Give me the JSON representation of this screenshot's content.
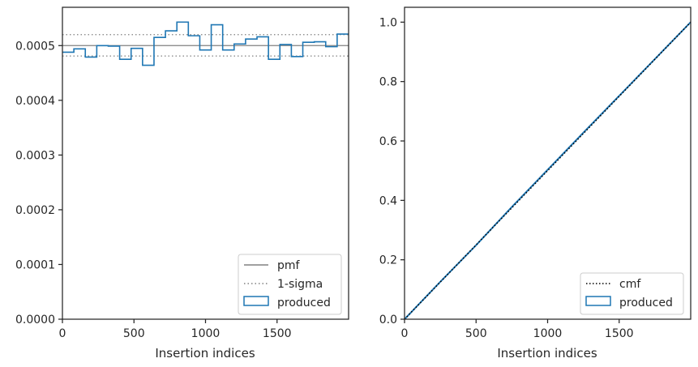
{
  "chart_data": [
    {
      "type": "step",
      "title": "",
      "xlabel": "Insertion indices",
      "ylabel": "",
      "xlim": [
        0,
        2000
      ],
      "ylim": [
        0,
        0.00057
      ],
      "xticks": [
        0,
        500,
        1000,
        1500
      ],
      "xtick_labels": [
        "0",
        "500",
        "1000",
        "1500"
      ],
      "yticks": [
        0,
        0.0001,
        0.0002,
        0.0003,
        0.0004,
        0.0005
      ],
      "ytick_labels": [
        "0.0000",
        "0.0001",
        "0.0002",
        "0.0003",
        "0.0004",
        "0.0005"
      ],
      "grid": false,
      "legend_position": "lower-right",
      "series": [
        {
          "name": "pmf",
          "kind": "hline",
          "value": 0.0005,
          "color": "#808080",
          "style": "solid"
        },
        {
          "name": "1-sigma",
          "kind": "hlines",
          "values": [
            0.000481,
            0.00052
          ],
          "color": "#808080",
          "style": "dotted"
        },
        {
          "name": "produced",
          "kind": "histogram-step",
          "color": "#1f77b4",
          "bin_width": 80,
          "bin_edges": [
            0,
            80,
            160,
            240,
            320,
            400,
            480,
            560,
            640,
            720,
            800,
            880,
            960,
            1040,
            1120,
            1200,
            1280,
            1360,
            1440,
            1520,
            1600,
            1680,
            1760,
            1840,
            1920,
            2000
          ],
          "values": [
            0.000488,
            0.000494,
            0.000479,
            0.0005,
            0.000499,
            0.000475,
            0.000495,
            0.000464,
            0.000515,
            0.000527,
            0.000543,
            0.000518,
            0.000492,
            0.000538,
            0.000492,
            0.000503,
            0.000512,
            0.000516,
            0.000475,
            0.000502,
            0.00048,
            0.000506,
            0.000507,
            0.000498,
            0.000521
          ]
        }
      ]
    },
    {
      "type": "line",
      "title": "",
      "xlabel": "Insertion indices",
      "ylabel": "",
      "xlim": [
        0,
        2000
      ],
      "ylim": [
        0,
        1.05
      ],
      "xticks": [
        0,
        500,
        1000,
        1500
      ],
      "xtick_labels": [
        "0",
        "500",
        "1000",
        "1500"
      ],
      "yticks": [
        0,
        0.2,
        0.4,
        0.6,
        0.8,
        1.0
      ],
      "ytick_labels": [
        "0.0",
        "0.2",
        "0.4",
        "0.6",
        "0.8",
        "1.0"
      ],
      "grid": false,
      "legend_position": "lower-right",
      "series": [
        {
          "name": "cmf",
          "kind": "line",
          "x": [
            0,
            2000
          ],
          "y": [
            0,
            1.0
          ],
          "color": "#000000",
          "style": "dotted"
        },
        {
          "name": "produced",
          "kind": "cumulative",
          "x": [
            0,
            250,
            500,
            750,
            1000,
            1250,
            1500,
            1750,
            2000
          ],
          "y": [
            0,
            0.126,
            0.249,
            0.378,
            0.503,
            0.628,
            0.752,
            0.876,
            1.0
          ],
          "color": "#1f77b4",
          "style": "solid"
        }
      ]
    }
  ]
}
